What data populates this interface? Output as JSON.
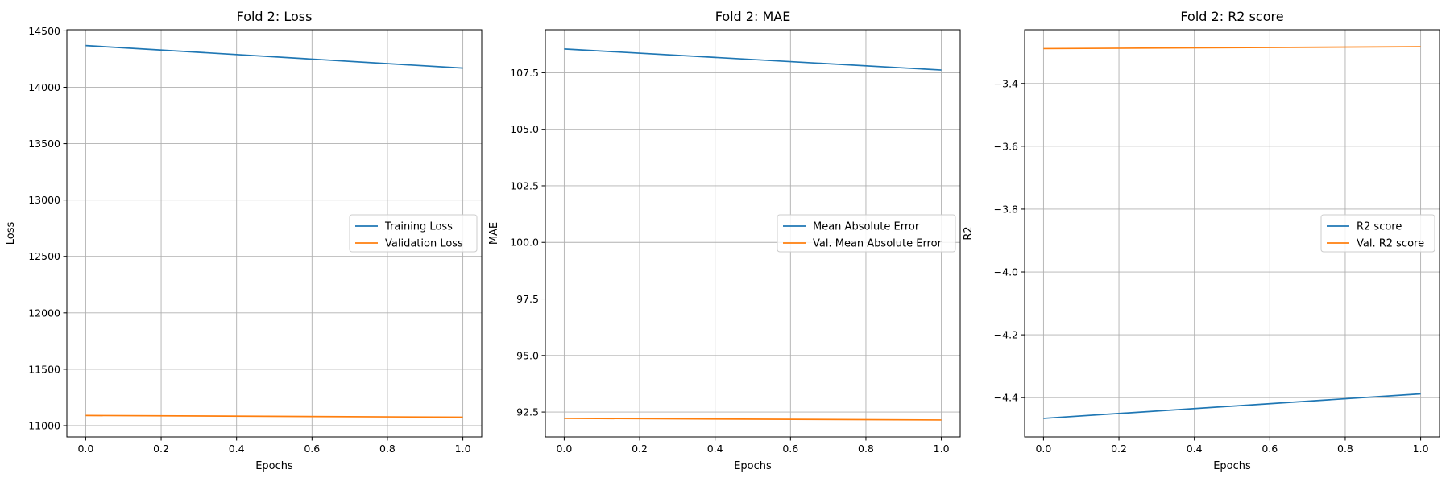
{
  "chart_data": [
    {
      "type": "line",
      "title": "Fold 2: Loss",
      "xlabel": "Epochs",
      "ylabel": "Loss",
      "xlim": [
        -0.05,
        1.05
      ],
      "ylim": [
        10900,
        14510
      ],
      "xticks": [
        0.0,
        0.2,
        0.4,
        0.6,
        0.8,
        1.0
      ],
      "xtick_labels": [
        "0.0",
        "0.2",
        "0.4",
        "0.6",
        "0.8",
        "1.0"
      ],
      "yticks": [
        11000,
        11500,
        12000,
        12500,
        13000,
        13500,
        14000,
        14500
      ],
      "ytick_labels": [
        "11000",
        "11500",
        "12000",
        "12500",
        "13000",
        "13500",
        "14000",
        "14500"
      ],
      "grid": true,
      "legend_position": "center-right",
      "series": [
        {
          "name": "Training Loss",
          "color": "#1f77b4",
          "x": [
            0.0,
            1.0
          ],
          "y": [
            14370,
            14170
          ]
        },
        {
          "name": "Validation Loss",
          "color": "#ff7f0e",
          "x": [
            0.0,
            1.0
          ],
          "y": [
            11090,
            11075
          ]
        }
      ]
    },
    {
      "type": "line",
      "title": "Fold 2: MAE",
      "xlabel": "Epochs",
      "ylabel": "MAE",
      "xlim": [
        -0.05,
        1.05
      ],
      "ylim": [
        91.4,
        109.4
      ],
      "xticks": [
        0.0,
        0.2,
        0.4,
        0.6,
        0.8,
        1.0
      ],
      "xtick_labels": [
        "0.0",
        "0.2",
        "0.4",
        "0.6",
        "0.8",
        "1.0"
      ],
      "yticks": [
        92.5,
        95.0,
        97.5,
        100.0,
        102.5,
        105.0,
        107.5
      ],
      "ytick_labels": [
        "92.5",
        "95.0",
        "97.5",
        "100.0",
        "102.5",
        "105.0",
        "107.5"
      ],
      "grid": true,
      "legend_position": "center-right",
      "series": [
        {
          "name": "Mean Absolute Error",
          "color": "#1f77b4",
          "x": [
            0.0,
            1.0
          ],
          "y": [
            108.55,
            107.62
          ]
        },
        {
          "name": "Val. Mean Absolute Error",
          "color": "#ff7f0e",
          "x": [
            0.0,
            1.0
          ],
          "y": [
            92.22,
            92.15
          ]
        }
      ]
    },
    {
      "type": "line",
      "title": "Fold 2: R2 score",
      "xlabel": "Epochs",
      "ylabel": "R2",
      "xlim": [
        -0.05,
        1.05
      ],
      "ylim": [
        -4.525,
        -3.229
      ],
      "xticks": [
        0.0,
        0.2,
        0.4,
        0.6,
        0.8,
        1.0
      ],
      "xtick_labels": [
        "0.0",
        "0.2",
        "0.4",
        "0.6",
        "0.8",
        "1.0"
      ],
      "yticks": [
        -4.4,
        -4.2,
        -4.0,
        -3.8,
        -3.6,
        -3.4
      ],
      "ytick_labels": [
        "−4.4",
        "−4.2",
        "−4.0",
        "−3.8",
        "−3.6",
        "−3.4"
      ],
      "grid": true,
      "legend_position": "center-right",
      "series": [
        {
          "name": "R2 score",
          "color": "#1f77b4",
          "x": [
            0.0,
            1.0
          ],
          "y": [
            -4.466,
            -4.388
          ]
        },
        {
          "name": "Val. R2 score",
          "color": "#ff7f0e",
          "x": [
            0.0,
            1.0
          ],
          "y": [
            -3.289,
            -3.283
          ]
        }
      ]
    }
  ]
}
